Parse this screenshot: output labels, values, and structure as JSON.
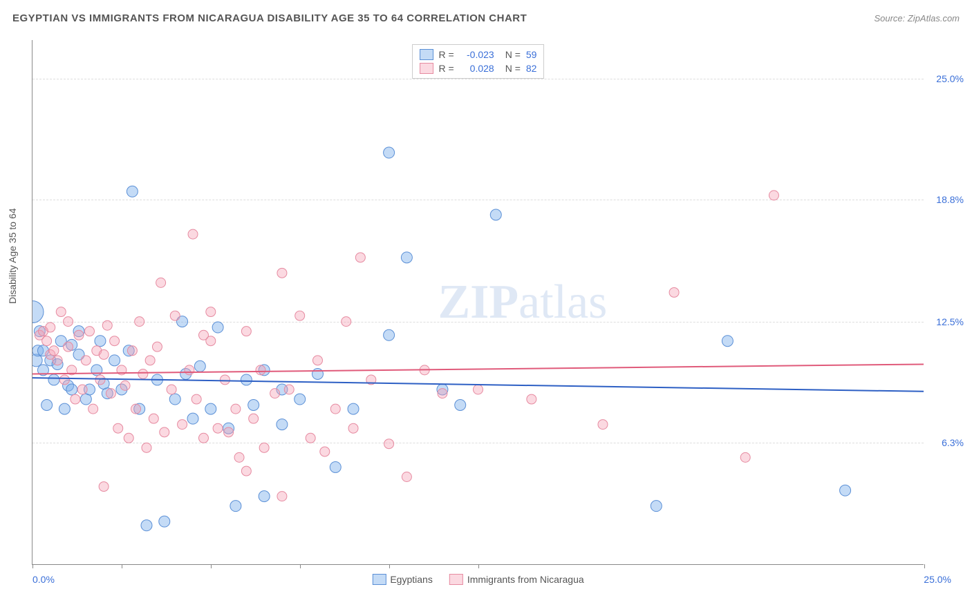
{
  "title": "EGYPTIAN VS IMMIGRANTS FROM NICARAGUA DISABILITY AGE 35 TO 64 CORRELATION CHART",
  "source": "Source: ZipAtlas.com",
  "ylabel": "Disability Age 35 to 64",
  "watermark_a": "ZIP",
  "watermark_b": "atlas",
  "chart": {
    "type": "scatter-correlation",
    "xlim": [
      0,
      25
    ],
    "ylim": [
      0,
      27
    ],
    "x_tick_positions": [
      0,
      2.5,
      5,
      7.5,
      10,
      12.5,
      25
    ],
    "x_axis_min_label": "0.0%",
    "x_axis_max_label": "25.0%",
    "y_ticks": [
      {
        "v": 6.3,
        "label": "6.3%"
      },
      {
        "v": 12.5,
        "label": "12.5%"
      },
      {
        "v": 18.8,
        "label": "18.8%"
      },
      {
        "v": 25.0,
        "label": "25.0%"
      }
    ],
    "background_color": "#ffffff",
    "grid_color": "#dddddd",
    "axis_color": "#888888",
    "label_color": "#3a6fd8",
    "series": [
      {
        "name": "Egyptians",
        "color_fill": "rgba(125,175,235,0.45)",
        "color_stroke": "#5a8fd6",
        "line_color": "#2d5fc4",
        "R": "-0.023",
        "N": "59",
        "regression": {
          "y_at_x0": 9.6,
          "y_at_x25": 8.9
        },
        "points": [
          [
            0.0,
            13.0,
            16
          ],
          [
            0.1,
            10.5,
            9
          ],
          [
            0.15,
            11.0,
            8
          ],
          [
            0.2,
            12.0,
            8
          ],
          [
            0.3,
            11.0,
            8
          ],
          [
            0.3,
            10.0,
            8
          ],
          [
            0.4,
            8.2,
            8
          ],
          [
            0.5,
            10.5,
            8
          ],
          [
            0.6,
            9.5,
            8
          ],
          [
            0.7,
            10.3,
            8
          ],
          [
            0.8,
            11.5,
            8
          ],
          [
            0.9,
            8.0,
            8
          ],
          [
            1.0,
            9.2,
            8
          ],
          [
            1.1,
            11.3,
            8
          ],
          [
            1.1,
            9.0,
            8
          ],
          [
            1.3,
            12.0,
            8
          ],
          [
            1.3,
            10.8,
            8
          ],
          [
            1.5,
            8.5,
            8
          ],
          [
            1.6,
            9.0,
            8
          ],
          [
            1.8,
            10.0,
            8
          ],
          [
            1.9,
            11.5,
            8
          ],
          [
            2.0,
            9.3,
            8
          ],
          [
            2.1,
            8.8,
            8
          ],
          [
            2.3,
            10.5,
            8
          ],
          [
            2.5,
            9.0,
            8
          ],
          [
            2.7,
            11.0,
            8
          ],
          [
            2.8,
            19.2,
            8
          ],
          [
            3.0,
            8.0,
            8
          ],
          [
            3.2,
            2.0,
            8
          ],
          [
            3.5,
            9.5,
            8
          ],
          [
            3.7,
            2.2,
            8
          ],
          [
            4.0,
            8.5,
            8
          ],
          [
            4.2,
            12.5,
            8
          ],
          [
            4.3,
            9.8,
            8
          ],
          [
            4.5,
            7.5,
            8
          ],
          [
            4.7,
            10.2,
            8
          ],
          [
            5.0,
            8.0,
            8
          ],
          [
            5.2,
            12.2,
            8
          ],
          [
            5.5,
            7.0,
            8
          ],
          [
            5.7,
            3.0,
            8
          ],
          [
            6.0,
            9.5,
            8
          ],
          [
            6.2,
            8.2,
            8
          ],
          [
            6.5,
            10.0,
            8
          ],
          [
            7.0,
            9.0,
            8
          ],
          [
            7.5,
            8.5,
            8
          ],
          [
            8.0,
            9.8,
            8
          ],
          [
            8.5,
            5.0,
            8
          ],
          [
            9.0,
            8.0,
            8
          ],
          [
            10.0,
            11.8,
            8
          ],
          [
            10.0,
            21.2,
            8
          ],
          [
            10.5,
            15.8,
            8
          ],
          [
            11.5,
            9.0,
            8
          ],
          [
            12.0,
            8.2,
            8
          ],
          [
            13.0,
            18.0,
            8
          ],
          [
            17.5,
            3.0,
            8
          ],
          [
            19.5,
            11.5,
            8
          ],
          [
            22.8,
            3.8,
            8
          ],
          [
            6.5,
            3.5,
            8
          ],
          [
            7.0,
            7.2,
            8
          ]
        ]
      },
      {
        "name": "Immigrants from Nicaragua",
        "color_fill": "rgba(245,160,180,0.40)",
        "color_stroke": "#e68aa0",
        "line_color": "#e05a7a",
        "R": "0.028",
        "N": "82",
        "regression": {
          "y_at_x0": 9.8,
          "y_at_x25": 10.3
        },
        "points": [
          [
            0.2,
            11.8,
            7
          ],
          [
            0.3,
            12.0,
            7
          ],
          [
            0.4,
            11.5,
            7
          ],
          [
            0.5,
            10.8,
            7
          ],
          [
            0.5,
            12.2,
            7
          ],
          [
            0.6,
            11.0,
            7
          ],
          [
            0.7,
            10.5,
            7
          ],
          [
            0.8,
            13.0,
            7
          ],
          [
            0.9,
            9.5,
            7
          ],
          [
            1.0,
            11.2,
            7
          ],
          [
            1.0,
            12.5,
            7
          ],
          [
            1.1,
            10.0,
            7
          ],
          [
            1.2,
            8.5,
            7
          ],
          [
            1.3,
            11.8,
            7
          ],
          [
            1.4,
            9.0,
            7
          ],
          [
            1.5,
            10.5,
            7
          ],
          [
            1.6,
            12.0,
            7
          ],
          [
            1.7,
            8.0,
            7
          ],
          [
            1.8,
            11.0,
            7
          ],
          [
            1.9,
            9.5,
            7
          ],
          [
            2.0,
            10.8,
            7
          ],
          [
            2.0,
            4.0,
            7
          ],
          [
            2.1,
            12.3,
            7
          ],
          [
            2.2,
            8.8,
            7
          ],
          [
            2.3,
            11.5,
            7
          ],
          [
            2.4,
            7.0,
            7
          ],
          [
            2.5,
            10.0,
            7
          ],
          [
            2.6,
            9.2,
            7
          ],
          [
            2.7,
            6.5,
            7
          ],
          [
            2.8,
            11.0,
            7
          ],
          [
            2.9,
            8.0,
            7
          ],
          [
            3.0,
            12.5,
            7
          ],
          [
            3.1,
            9.8,
            7
          ],
          [
            3.2,
            6.0,
            7
          ],
          [
            3.3,
            10.5,
            7
          ],
          [
            3.4,
            7.5,
            7
          ],
          [
            3.5,
            11.2,
            7
          ],
          [
            3.7,
            6.8,
            7
          ],
          [
            3.9,
            9.0,
            7
          ],
          [
            4.0,
            12.8,
            7
          ],
          [
            4.2,
            7.2,
            7
          ],
          [
            4.4,
            10.0,
            7
          ],
          [
            4.5,
            17.0,
            7
          ],
          [
            4.6,
            8.5,
            7
          ],
          [
            4.8,
            6.5,
            7
          ],
          [
            5.0,
            11.5,
            7
          ],
          [
            5.2,
            7.0,
            7
          ],
          [
            5.4,
            9.5,
            7
          ],
          [
            5.5,
            6.8,
            7
          ],
          [
            5.7,
            8.0,
            7
          ],
          [
            5.8,
            5.5,
            7
          ],
          [
            6.0,
            12.0,
            7
          ],
          [
            6.2,
            7.5,
            7
          ],
          [
            6.4,
            10.0,
            7
          ],
          [
            6.5,
            6.0,
            7
          ],
          [
            6.8,
            8.8,
            7
          ],
          [
            7.0,
            15.0,
            7
          ],
          [
            7.0,
            3.5,
            7
          ],
          [
            7.2,
            9.0,
            7
          ],
          [
            7.5,
            12.8,
            7
          ],
          [
            7.8,
            6.5,
            7
          ],
          [
            8.0,
            10.5,
            7
          ],
          [
            8.2,
            5.8,
            7
          ],
          [
            8.5,
            8.0,
            7
          ],
          [
            8.8,
            12.5,
            7
          ],
          [
            9.0,
            7.0,
            7
          ],
          [
            9.2,
            15.8,
            7
          ],
          [
            9.5,
            9.5,
            7
          ],
          [
            10.0,
            6.2,
            7
          ],
          [
            10.5,
            4.5,
            7
          ],
          [
            11.0,
            10.0,
            7
          ],
          [
            11.5,
            8.8,
            7
          ],
          [
            12.5,
            9.0,
            7
          ],
          [
            14.0,
            8.5,
            7
          ],
          [
            16.0,
            7.2,
            7
          ],
          [
            18.0,
            14.0,
            7
          ],
          [
            20.0,
            5.5,
            7
          ],
          [
            20.8,
            19.0,
            7
          ],
          [
            5.0,
            13.0,
            7
          ],
          [
            3.6,
            14.5,
            7
          ],
          [
            4.8,
            11.8,
            7
          ],
          [
            6.0,
            4.8,
            7
          ]
        ]
      }
    ]
  },
  "legend_bottom": [
    {
      "label": "Egyptians",
      "fill": "rgba(125,175,235,0.45)",
      "stroke": "#5a8fd6"
    },
    {
      "label": "Immigrants from Nicaragua",
      "fill": "rgba(245,160,180,0.40)",
      "stroke": "#e68aa0"
    }
  ]
}
